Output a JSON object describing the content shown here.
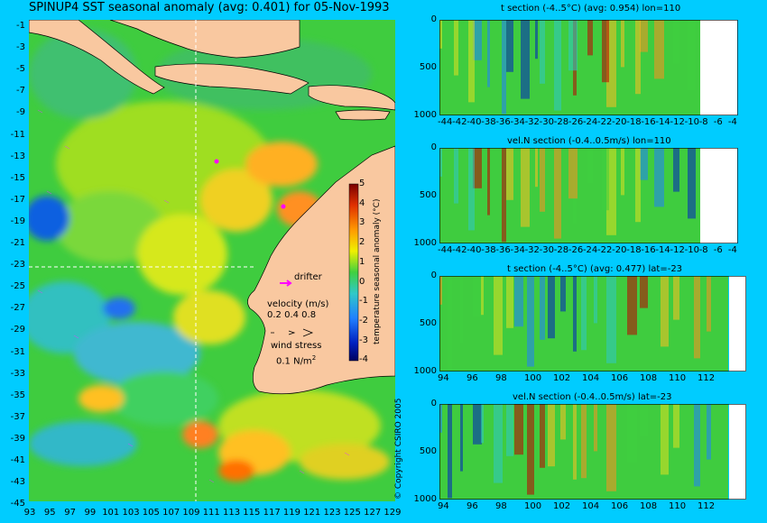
{
  "map": {
    "title": "SPINUP4 SST seasonal anomaly (avg: 0.401) for 05-Nov-1993",
    "lat_ticks": [
      "-1",
      "-3",
      "-5",
      "-7",
      "-9",
      "-11",
      "-13",
      "-15",
      "-17",
      "-19",
      "-21",
      "-23",
      "-25",
      "-27",
      "-29",
      "-31",
      "-33",
      "-35",
      "-37",
      "-39",
      "-41",
      "-43",
      "-45"
    ],
    "lon_ticks": [
      "93",
      "95",
      "97",
      "99",
      "101",
      "103",
      "105",
      "107",
      "109",
      "111",
      "113",
      "115",
      "117",
      "119",
      "121",
      "123",
      "125",
      "127",
      "129"
    ],
    "colorbar": {
      "title": "temperature seasonal anomaly (°C)",
      "ticks": [
        "5",
        "4",
        "3",
        "2",
        "1",
        "0",
        "-1",
        "-2",
        "-3",
        "-4"
      ]
    },
    "legend": {
      "drifter": "drifter",
      "velocity_title": "velocity (m/s)",
      "velocity_values": "0.2 0.4 0.8",
      "wind_title": "wind stress",
      "wind_value": "0.1 N/m",
      "wind_sup": "2"
    },
    "colors": {
      "land": "#f9c8a0",
      "ocean_green": "#3fcc3f",
      "background": "#00ccff",
      "drifter": "#ff00ff"
    }
  },
  "sections": [
    {
      "title": "t section (-4..5°C) (avg: 0.954) lon=110",
      "y_ticks": [
        "0",
        "500",
        "1000"
      ],
      "x_ticks": [
        "-44",
        "-42",
        "-40",
        "-38",
        "-36",
        "-34",
        "-32",
        "-30",
        "-28",
        "-26",
        "-24",
        "-22",
        "-20",
        "-18",
        "-16",
        "-14",
        "-12",
        "-10",
        "-8",
        "-6",
        "-4"
      ]
    },
    {
      "title": "vel.N section (-0.4..0.5m/s) lon=110",
      "y_ticks": [
        "0",
        "500",
        "1000"
      ],
      "x_ticks": [
        "-44",
        "-42",
        "-40",
        "-38",
        "-36",
        "-34",
        "-32",
        "-30",
        "-28",
        "-26",
        "-24",
        "-22",
        "-20",
        "-18",
        "-16",
        "-14",
        "-12",
        "-10",
        "-8",
        "-6",
        "-4"
      ]
    },
    {
      "title": "t section (-4..5°C) (avg: 0.477) lat=-23",
      "y_ticks": [
        "0",
        "500",
        "1000"
      ],
      "x_ticks": [
        "94",
        "96",
        "98",
        "100",
        "102",
        "104",
        "106",
        "108",
        "110",
        "112"
      ]
    },
    {
      "title": "vel.N section (-0.4..0.5m/s) lat=-23",
      "y_ticks": [
        "0",
        "500",
        "1000"
      ],
      "x_ticks": [
        "94",
        "96",
        "98",
        "100",
        "102",
        "104",
        "106",
        "108",
        "110",
        "112"
      ]
    }
  ],
  "copyright": "© Copyright CSIRO 2005"
}
